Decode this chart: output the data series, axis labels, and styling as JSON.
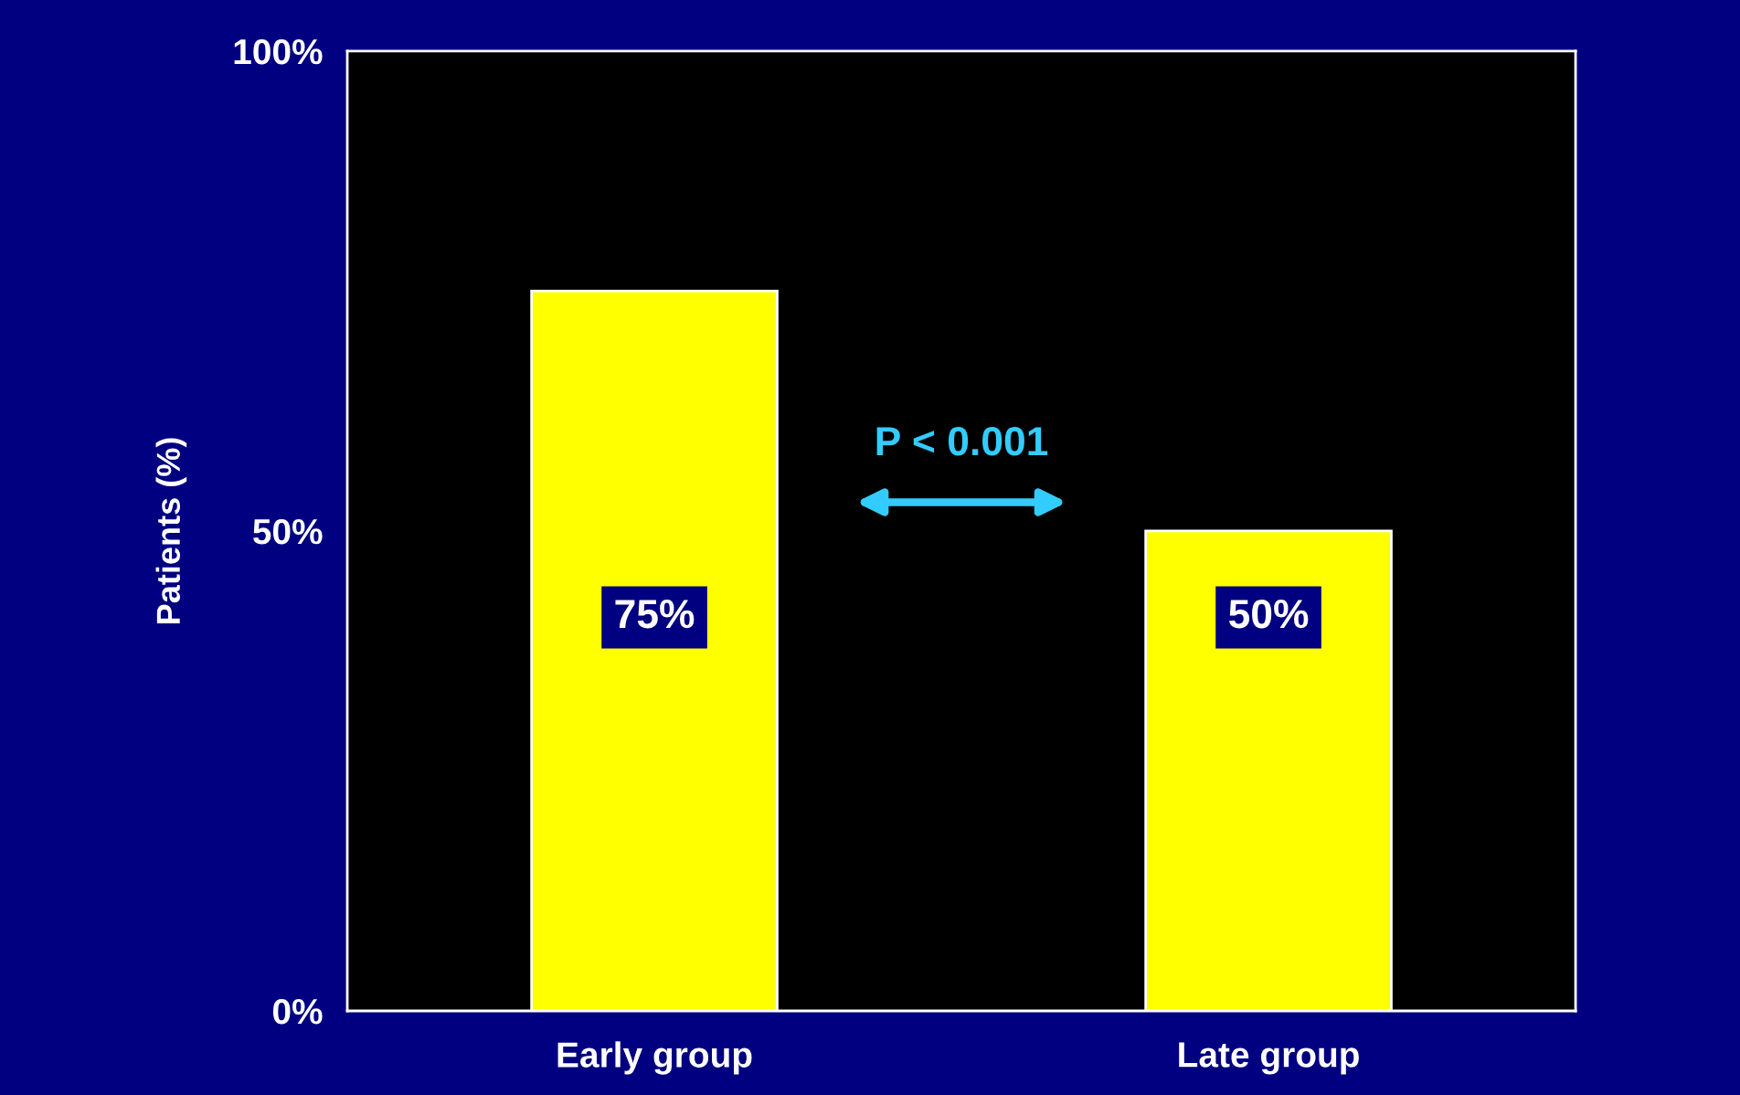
{
  "chart_data": {
    "type": "bar",
    "ylabel": "Patients (%)",
    "categories": [
      "Early group",
      "Late group"
    ],
    "values": [
      75,
      50
    ],
    "color": "#ffff00",
    "value_labels": [
      "75%",
      "50%"
    ],
    "ylim": [
      0,
      100
    ],
    "yticks": [
      {
        "value": 0,
        "label": "0%"
      },
      {
        "value": 50,
        "label": "50%"
      },
      {
        "value": 100,
        "label": "100%"
      }
    ],
    "annotations": [
      "P < 0.001"
    ],
    "grid": false,
    "legend": false
  }
}
